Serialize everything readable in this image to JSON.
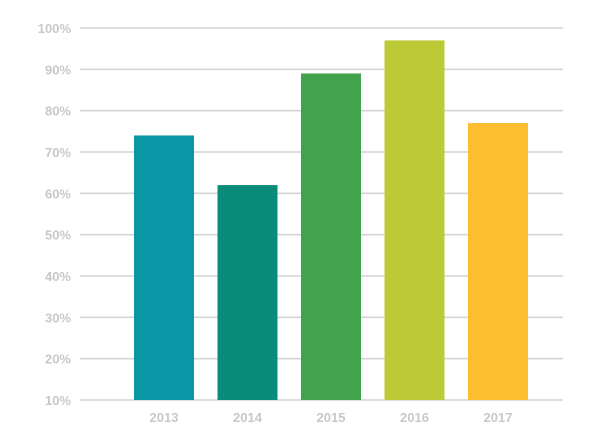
{
  "chart_data": {
    "type": "bar",
    "categories": [
      "2013",
      "2014",
      "2015",
      "2016",
      "2017"
    ],
    "values": [
      74,
      62,
      89,
      97,
      77
    ],
    "colors": [
      "#0a97a6",
      "#0b8c7a",
      "#43a24c",
      "#bccb35",
      "#fcbd2e"
    ],
    "ylim": [
      10,
      100
    ],
    "yticks": [
      10,
      20,
      30,
      40,
      50,
      60,
      70,
      80,
      90,
      100
    ],
    "ytick_labels": [
      "10%",
      "20%",
      "30%",
      "40%",
      "50%",
      "60%",
      "70%",
      "80%",
      "90%",
      "100%"
    ],
    "grid": true,
    "legend": false
  }
}
